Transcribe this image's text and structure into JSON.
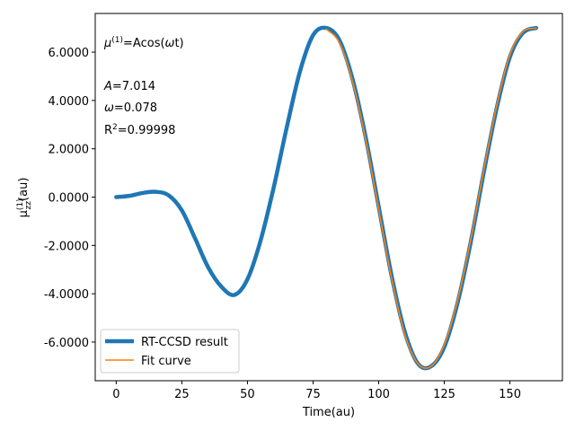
{
  "chart_data": {
    "type": "line",
    "xlabel": "Time(au)",
    "ylabel": "μzz(1)(au)",
    "xlim": [
      -8,
      170
    ],
    "ylim": [
      -7.6,
      7.6
    ],
    "x_ticks": [
      0,
      25,
      50,
      75,
      100,
      125,
      150
    ],
    "x_tick_labels": [
      "0",
      "25",
      "50",
      "75",
      "100",
      "125",
      "150"
    ],
    "y_ticks": [
      6,
      4,
      2,
      0,
      -2,
      -4,
      -6
    ],
    "y_tick_labels": [
      "6.0000",
      "4.0000",
      "2.0000",
      "0.0000",
      "-2.0000",
      "-4.0000",
      "-6.0000"
    ],
    "grid": false,
    "legend_position": "bottom-left",
    "annotations": {
      "model": "μ(1)=Acos(ωt)",
      "A": "A=7.014",
      "omega": "ω=0.078",
      "r2": "R2=0.99998"
    },
    "series": [
      {
        "name": "RT-CCSD result",
        "color": "#1f77b4",
        "x": [
          0,
          5,
          10,
          15,
          20,
          25,
          30,
          35,
          40,
          45,
          50,
          55,
          60,
          65,
          70,
          75,
          80,
          85,
          90,
          95,
          100,
          105,
          110,
          115,
          120,
          125,
          130,
          135,
          140,
          145,
          150,
          155,
          160
        ],
        "y": [
          0.0,
          0.05,
          0.17,
          0.22,
          0.07,
          -0.55,
          -1.7,
          -2.9,
          -3.7,
          -4.05,
          -3.4,
          -1.8,
          0.4,
          2.9,
          5.2,
          6.7,
          7.0,
          6.5,
          4.9,
          2.5,
          -0.4,
          -3.3,
          -5.6,
          -6.9,
          -7.0,
          -6.2,
          -4.4,
          -1.9,
          1.0,
          3.7,
          5.8,
          6.8,
          7.0
        ]
      },
      {
        "name": "Fit curve",
        "color": "#ff7f0e",
        "x": [
          80,
          85,
          90,
          95,
          100,
          105,
          110,
          115,
          120,
          125,
          130,
          135,
          140,
          145,
          150,
          155,
          160
        ],
        "y": [
          6.95,
          6.4,
          4.8,
          2.4,
          -0.5,
          -3.4,
          -5.7,
          -6.9,
          -7.0,
          -6.1,
          -4.3,
          -1.8,
          1.1,
          3.8,
          5.9,
          6.85,
          6.99
        ]
      }
    ]
  }
}
